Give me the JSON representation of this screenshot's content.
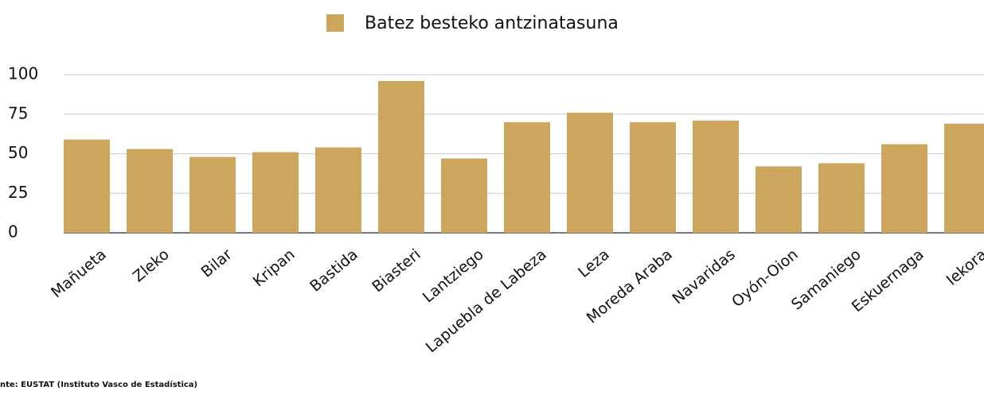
{
  "chart_data": {
    "type": "bar",
    "categories": [
      "Mañueta",
      "Zleko",
      "Bilar",
      "Kripan",
      "Bastida",
      "Biasteri",
      "Lantziego",
      "Lapuebla de Labeza",
      "Leza",
      "Moreda Araba",
      "Navaridas",
      "Oyón-Oion",
      "Samaniego",
      "Eskuernaga",
      "Iekora"
    ],
    "series": [
      {
        "name": "Batez besteko antzinatasuna",
        "color": "#cda65e",
        "values": [
          59,
          53,
          48,
          51,
          54,
          96,
          47,
          70,
          76,
          70,
          71,
          42,
          44,
          56,
          69
        ]
      }
    ],
    "ylim": [
      0,
      100
    ],
    "yticks": [
      0,
      25,
      50,
      75,
      100
    ],
    "grid": true,
    "legend": "top",
    "source": "nte: EUSTAT (Instituto Vasco de Estadística)"
  }
}
